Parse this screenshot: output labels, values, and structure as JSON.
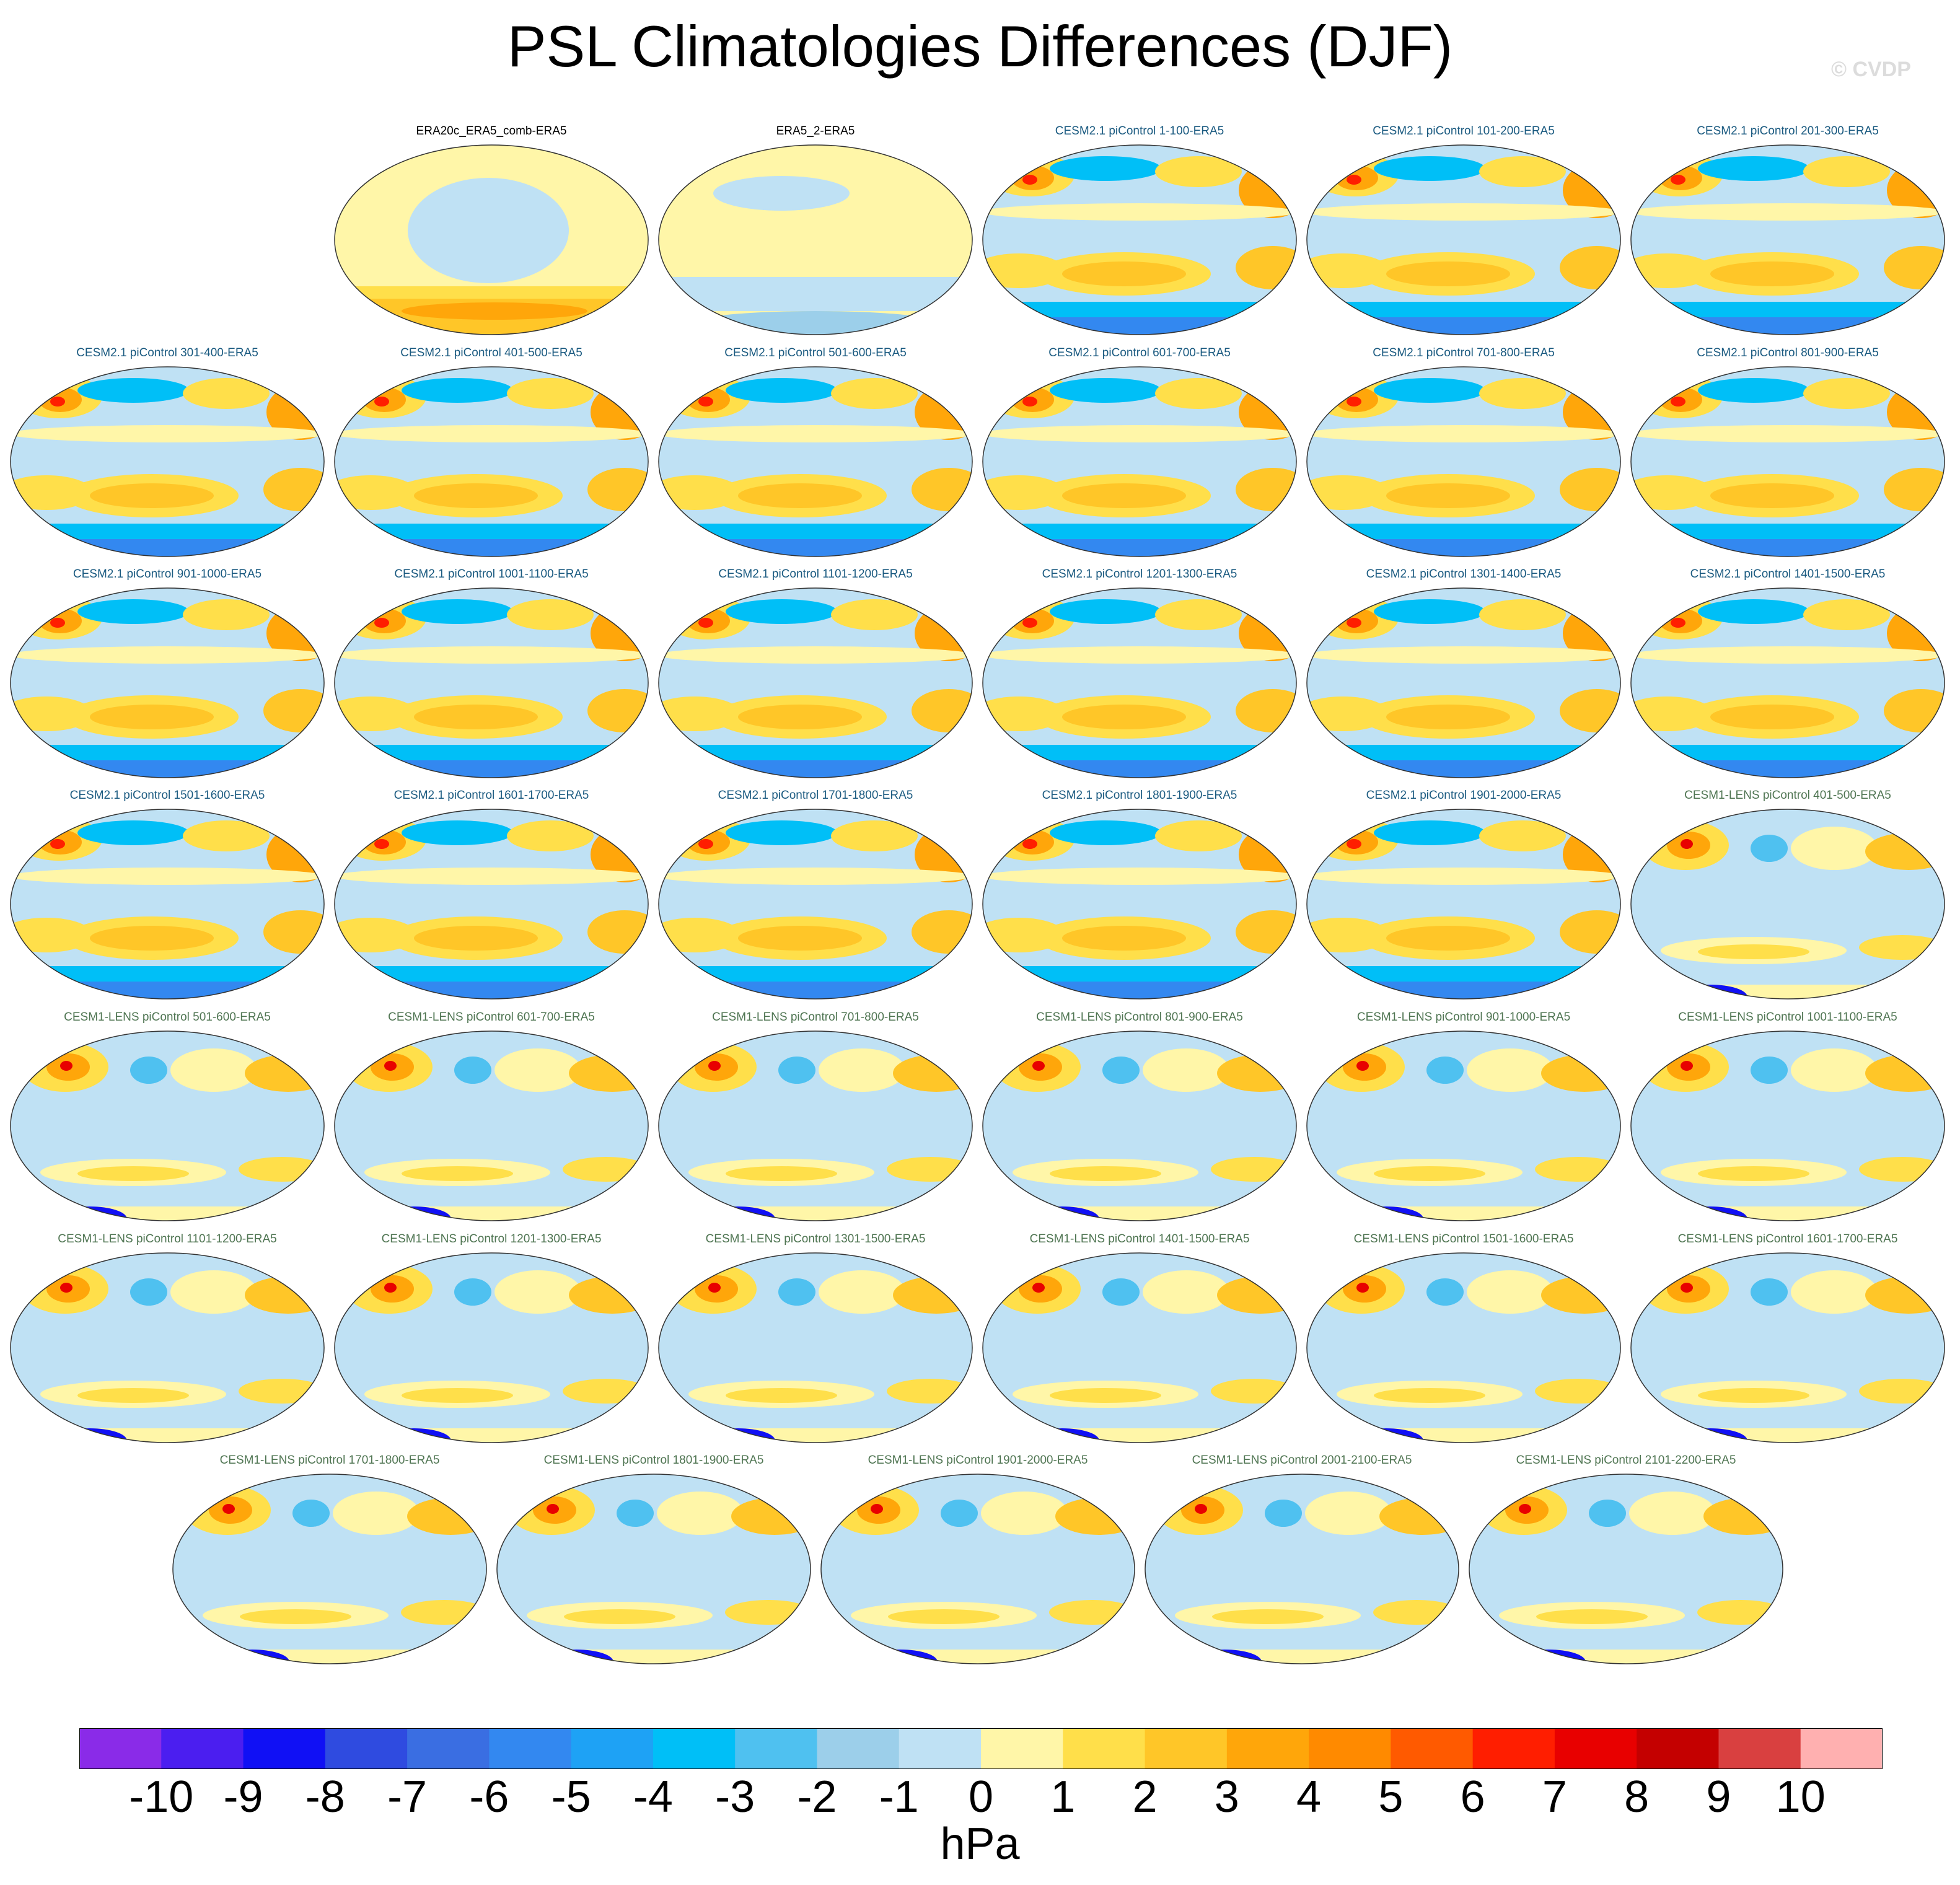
{
  "title": "PSL Climatologies Differences (DJF)",
  "watermark": "© CVDP",
  "label_colors": {
    "obs": "#000000",
    "cesm2": "#1a5a80",
    "cesm1": "#4f7552"
  },
  "panels": [
    {
      "label": "ERA20c_ERA5_comb-ERA5",
      "group": "obs",
      "pattern": "obs1"
    },
    {
      "label": "ERA5_2-ERA5",
      "group": "obs",
      "pattern": "obs2"
    },
    {
      "label": "CESM2.1 piControl 1-100-ERA5",
      "group": "cesm2",
      "pattern": "cesm2"
    },
    {
      "label": "CESM2.1 piControl 101-200-ERA5",
      "group": "cesm2",
      "pattern": "cesm2"
    },
    {
      "label": "CESM2.1 piControl 201-300-ERA5",
      "group": "cesm2",
      "pattern": "cesm2"
    },
    {
      "label": "CESM2.1 piControl 301-400-ERA5",
      "group": "cesm2",
      "pattern": "cesm2"
    },
    {
      "label": "CESM2.1 piControl 401-500-ERA5",
      "group": "cesm2",
      "pattern": "cesm2"
    },
    {
      "label": "CESM2.1 piControl 501-600-ERA5",
      "group": "cesm2",
      "pattern": "cesm2"
    },
    {
      "label": "CESM2.1 piControl 601-700-ERA5",
      "group": "cesm2",
      "pattern": "cesm2"
    },
    {
      "label": "CESM2.1 piControl 701-800-ERA5",
      "group": "cesm2",
      "pattern": "cesm2"
    },
    {
      "label": "CESM2.1 piControl 801-900-ERA5",
      "group": "cesm2",
      "pattern": "cesm2"
    },
    {
      "label": "CESM2.1 piControl 901-1000-ERA5",
      "group": "cesm2",
      "pattern": "cesm2"
    },
    {
      "label": "CESM2.1 piControl 1001-1100-ERA5",
      "group": "cesm2",
      "pattern": "cesm2"
    },
    {
      "label": "CESM2.1 piControl 1101-1200-ERA5",
      "group": "cesm2",
      "pattern": "cesm2"
    },
    {
      "label": "CESM2.1 piControl 1201-1300-ERA5",
      "group": "cesm2",
      "pattern": "cesm2"
    },
    {
      "label": "CESM2.1 piControl 1301-1400-ERA5",
      "group": "cesm2",
      "pattern": "cesm2"
    },
    {
      "label": "CESM2.1 piControl 1401-1500-ERA5",
      "group": "cesm2",
      "pattern": "cesm2"
    },
    {
      "label": "CESM2.1 piControl 1501-1600-ERA5",
      "group": "cesm2",
      "pattern": "cesm2"
    },
    {
      "label": "CESM2.1 piControl 1601-1700-ERA5",
      "group": "cesm2",
      "pattern": "cesm2"
    },
    {
      "label": "CESM2.1 piControl 1701-1800-ERA5",
      "group": "cesm2",
      "pattern": "cesm2"
    },
    {
      "label": "CESM2.1 piControl 1801-1900-ERA5",
      "group": "cesm2",
      "pattern": "cesm2"
    },
    {
      "label": "CESM2.1 piControl 1901-2000-ERA5",
      "group": "cesm2",
      "pattern": "cesm2"
    },
    {
      "label": "CESM1-LENS piControl 401-500-ERA5",
      "group": "cesm1",
      "pattern": "cesm1"
    },
    {
      "label": "CESM1-LENS piControl 501-600-ERA5",
      "group": "cesm1",
      "pattern": "cesm1"
    },
    {
      "label": "CESM1-LENS piControl 601-700-ERA5",
      "group": "cesm1",
      "pattern": "cesm1"
    },
    {
      "label": "CESM1-LENS piControl 701-800-ERA5",
      "group": "cesm1",
      "pattern": "cesm1"
    },
    {
      "label": "CESM1-LENS piControl 801-900-ERA5",
      "group": "cesm1",
      "pattern": "cesm1"
    },
    {
      "label": "CESM1-LENS piControl 901-1000-ERA5",
      "group": "cesm1",
      "pattern": "cesm1"
    },
    {
      "label": "CESM1-LENS piControl 1001-1100-ERA5",
      "group": "cesm1",
      "pattern": "cesm1"
    },
    {
      "label": "CESM1-LENS piControl 1101-1200-ERA5",
      "group": "cesm1",
      "pattern": "cesm1"
    },
    {
      "label": "CESM1-LENS piControl 1201-1300-ERA5",
      "group": "cesm1",
      "pattern": "cesm1"
    },
    {
      "label": "CESM1-LENS piControl 1301-1500-ERA5",
      "group": "cesm1",
      "pattern": "cesm1"
    },
    {
      "label": "CESM1-LENS piControl 1401-1500-ERA5",
      "group": "cesm1",
      "pattern": "cesm1"
    },
    {
      "label": "CESM1-LENS piControl 1501-1600-ERA5",
      "group": "cesm1",
      "pattern": "cesm1"
    },
    {
      "label": "CESM1-LENS piControl 1601-1700-ERA5",
      "group": "cesm1",
      "pattern": "cesm1"
    },
    {
      "label": "CESM1-LENS piControl 1701-1800-ERA5",
      "group": "cesm1",
      "pattern": "cesm1"
    },
    {
      "label": "CESM1-LENS piControl 1801-1900-ERA5",
      "group": "cesm1",
      "pattern": "cesm1"
    },
    {
      "label": "CESM1-LENS piControl 1901-2000-ERA5",
      "group": "cesm1",
      "pattern": "cesm1"
    },
    {
      "label": "CESM1-LENS piControl 2001-2100-ERA5",
      "group": "cesm1",
      "pattern": "cesm1"
    },
    {
      "label": "CESM1-LENS piControl 2101-2200-ERA5",
      "group": "cesm1",
      "pattern": "cesm1"
    }
  ],
  "colorbar": {
    "units": "hPa",
    "tick_labels": [
      "-10",
      "-9",
      "-8",
      "-7",
      "-6",
      "-5",
      "-4",
      "-3",
      "-2",
      "-1",
      "0",
      "1",
      "2",
      "3",
      "4",
      "5",
      "6",
      "7",
      "8",
      "9",
      "10"
    ],
    "colors": [
      "#8a2be8",
      "#4b1ef0",
      "#1010f5",
      "#2f4be0",
      "#3a6ee2",
      "#3388f0",
      "#1ea2f5",
      "#00bff7",
      "#4fc1f0",
      "#9ccfea",
      "#bfe1f4",
      "#fff6a8",
      "#ffdf4a",
      "#ffc628",
      "#ffa60a",
      "#ff8a00",
      "#ff5a00",
      "#ff1e00",
      "#e80000",
      "#c40000",
      "#d94040",
      "#ffb0b0"
    ]
  }
}
